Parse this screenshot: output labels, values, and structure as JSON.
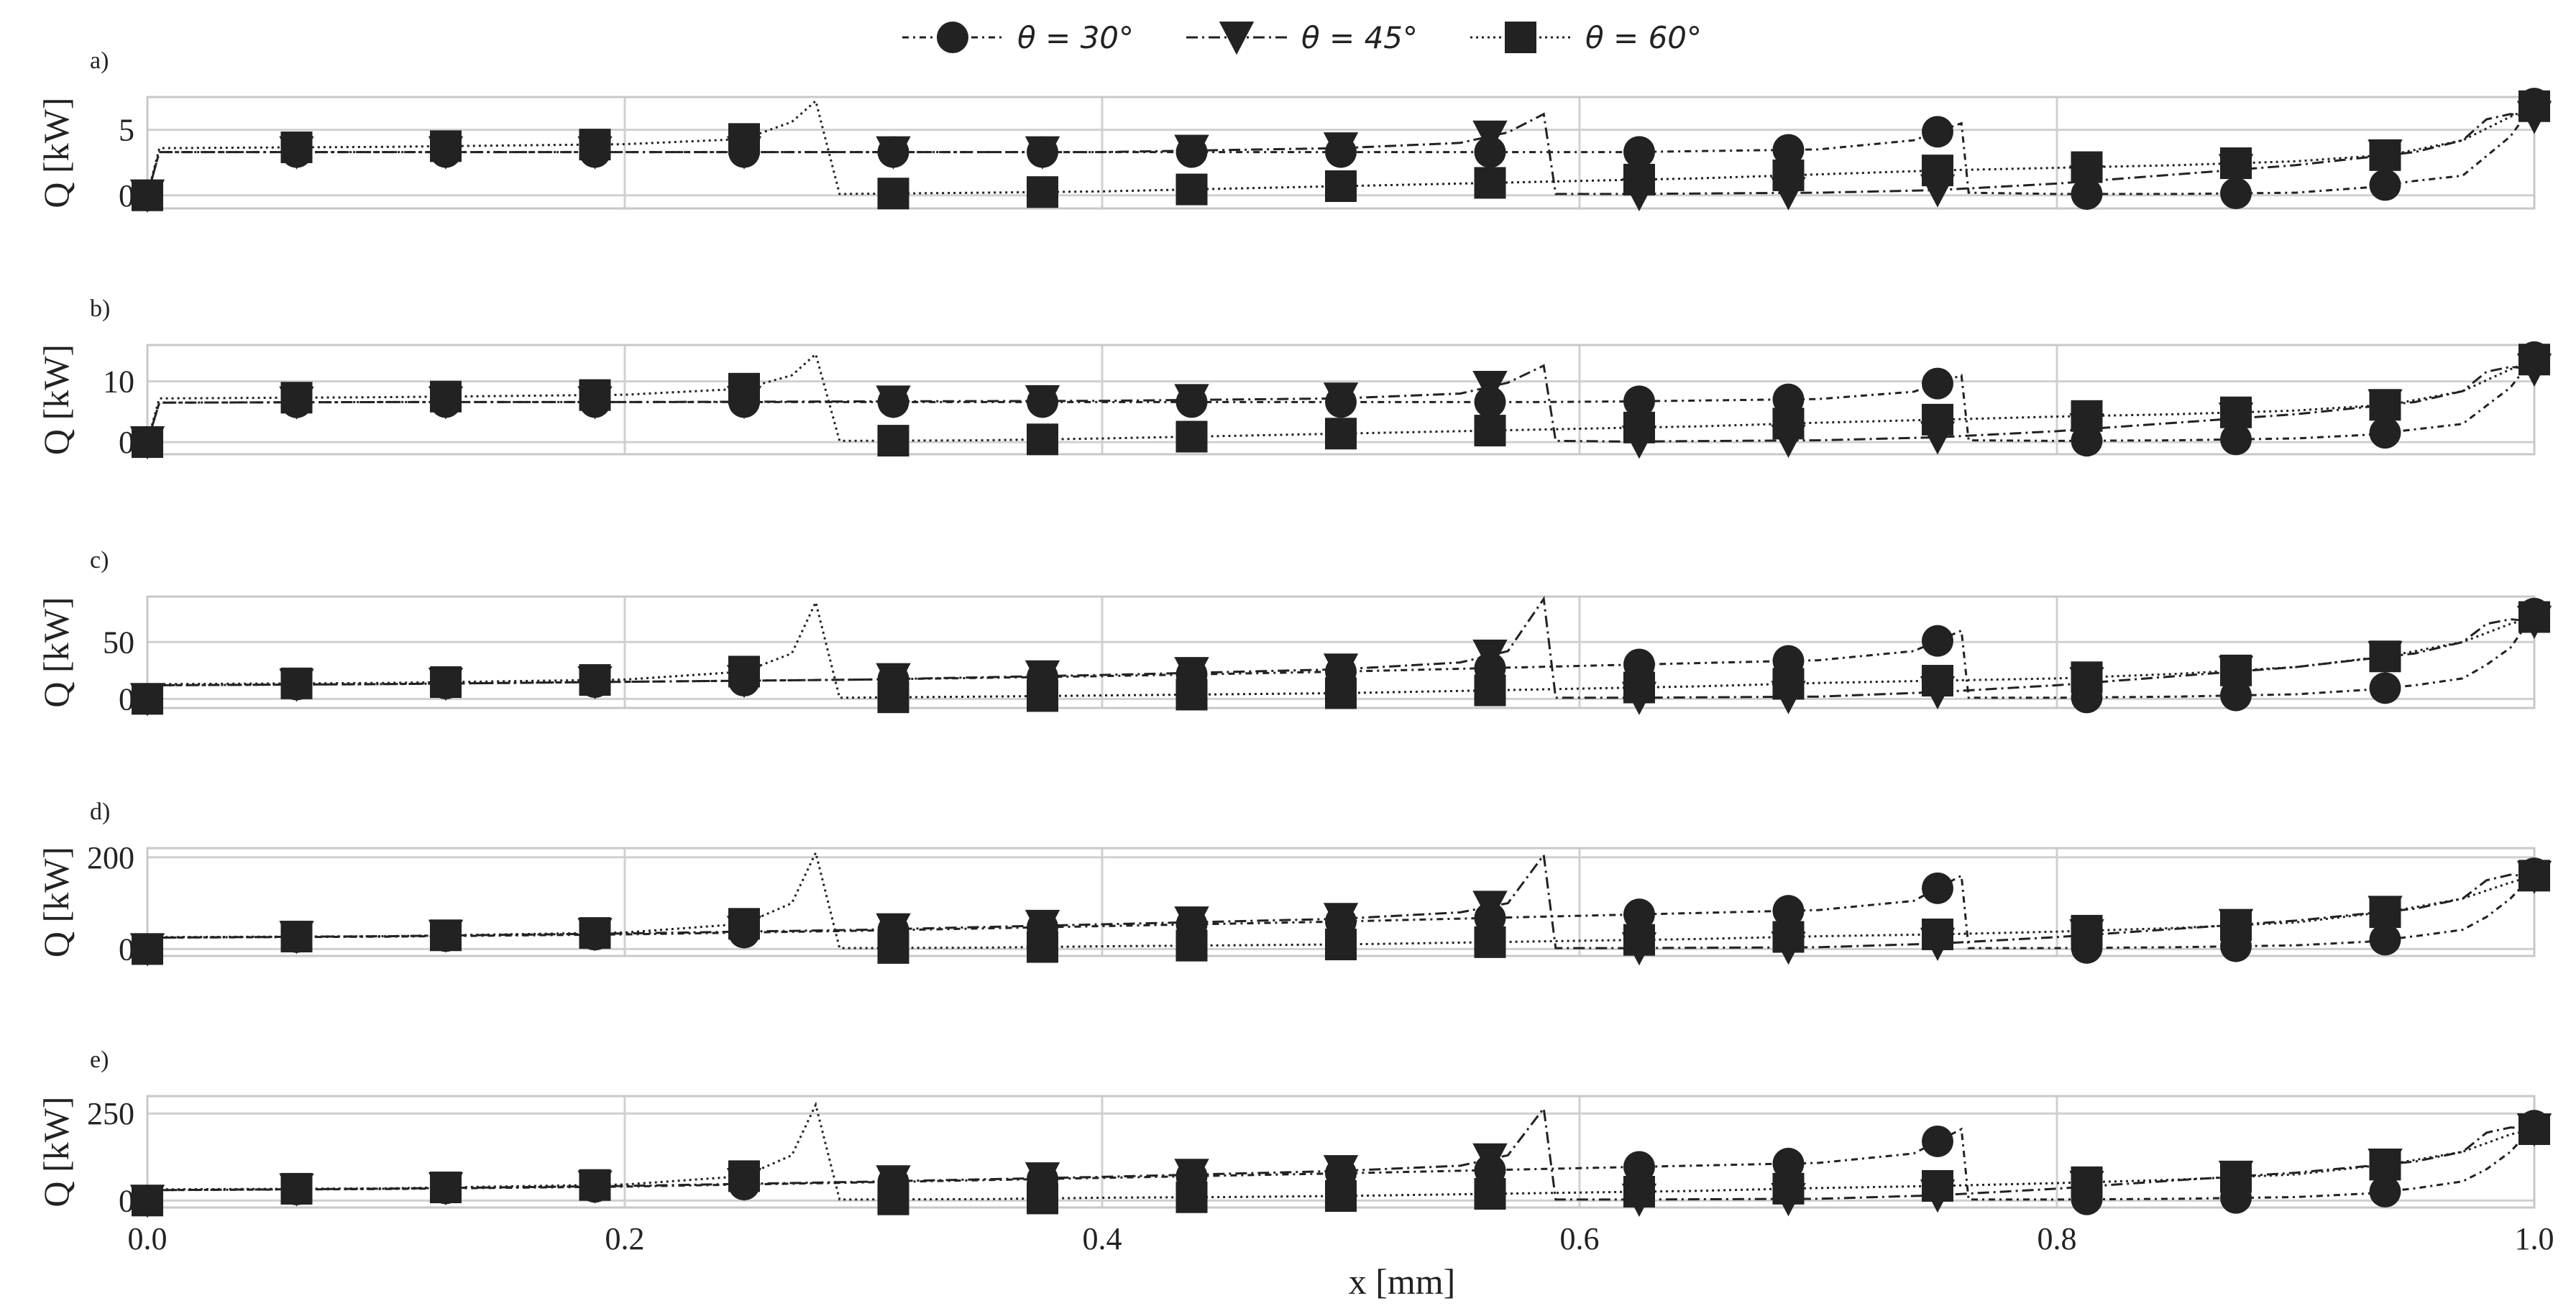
{
  "legend": [
    {
      "label": "θ = 30°",
      "marker": "circle",
      "dash": "9 6 3 6"
    },
    {
      "label": "θ = 45°",
      "marker": "triangle-down",
      "dash": "16 6 3 6"
    },
    {
      "label": "θ = 60°",
      "marker": "square",
      "dash": "3 5"
    }
  ],
  "colors": {
    "line": "#222222",
    "grid": "#d0d0d0",
    "frame": "#c8c8c8"
  },
  "xlabel": "x [mm]",
  "chart_data": {
    "type": "line",
    "xlabel": "x [mm]",
    "xlim": [
      0.0,
      1.0
    ],
    "x_ticks": [
      "0.0",
      "0.2",
      "0.4",
      "0.6",
      "0.8",
      "1.0"
    ],
    "x_tick_values": [
      0.0,
      0.2,
      0.4,
      0.6,
      0.8,
      1.0
    ],
    "grid": true,
    "legend_position": "top-center",
    "panels": [
      {
        "label": "a)",
        "ylabel": "Q [kW]",
        "ylim": [
          -1,
          7.5
        ],
        "y_ticks": [
          "0",
          "5"
        ],
        "y_tick_values": [
          0,
          5
        ],
        "series": [
          {
            "name": "θ = 30°",
            "marker": "circle",
            "x": [
              0,
              0.005,
              0.06,
              0.12,
              0.2,
              0.3,
              0.4,
              0.5,
              0.58,
              0.62,
              0.7,
              0.74,
              0.76,
              0.763,
              0.8,
              0.85,
              0.9,
              0.93,
              0.95,
              0.97,
              0.98,
              0.99,
              1.0
            ],
            "y": [
              0,
              3.3,
              3.3,
              3.3,
              3.3,
              3.3,
              3.3,
              3.3,
              3.3,
              3.3,
              3.5,
              4.2,
              5.5,
              0.2,
              0.1,
              0.1,
              0.2,
              0.6,
              1.1,
              1.5,
              3.0,
              4.5,
              7.0
            ]
          },
          {
            "name": "θ = 45°",
            "marker": "triangle-down",
            "x": [
              0,
              0.005,
              0.1,
              0.2,
              0.3,
              0.4,
              0.5,
              0.55,
              0.57,
              0.585,
              0.59,
              0.62,
              0.7,
              0.75,
              0.8,
              0.85,
              0.9,
              0.95,
              0.97,
              0.98,
              0.99,
              1.0
            ],
            "y": [
              0,
              3.3,
              3.3,
              3.3,
              3.3,
              3.3,
              3.6,
              4.0,
              4.8,
              6.2,
              0.1,
              0.1,
              0.2,
              0.4,
              0.9,
              1.6,
              2.3,
              3.3,
              4.2,
              5.8,
              6.2,
              6.0
            ]
          },
          {
            "name": "θ = 60°",
            "marker": "square",
            "x": [
              0,
              0.005,
              0.1,
              0.2,
              0.25,
              0.27,
              0.28,
              0.29,
              0.35,
              0.4,
              0.45,
              0.5,
              0.55,
              0.6,
              0.65,
              0.7,
              0.75,
              0.8,
              0.85,
              0.9,
              0.94,
              0.97,
              0.99,
              1.0
            ],
            "y": [
              0,
              3.6,
              3.7,
              3.9,
              4.3,
              5.6,
              7.2,
              0.1,
              0.2,
              0.3,
              0.5,
              0.7,
              0.9,
              1.1,
              1.3,
              1.6,
              1.9,
              2.1,
              2.3,
              2.6,
              3.1,
              4.2,
              6.0,
              6.8
            ]
          }
        ]
      },
      {
        "label": "b)",
        "ylabel": "Q [kW]",
        "ylim": [
          -2,
          16
        ],
        "y_ticks": [
          "0",
          "10"
        ],
        "y_tick_values": [
          0,
          10
        ],
        "series": [
          {
            "name": "θ = 30°",
            "marker": "circle",
            "x": [
              0,
              0.005,
              0.1,
              0.2,
              0.3,
              0.4,
              0.5,
              0.58,
              0.62,
              0.7,
              0.74,
              0.76,
              0.763,
              0.8,
              0.85,
              0.9,
              0.93,
              0.95,
              0.97,
              0.98,
              0.99,
              1.0
            ],
            "y": [
              0,
              6.5,
              6.6,
              6.6,
              6.6,
              6.6,
              6.6,
              6.6,
              6.7,
              7.1,
              8.3,
              11.0,
              0.3,
              0.2,
              0.3,
              0.6,
              1.2,
              2.1,
              3.0,
              6.0,
              9.0,
              14.0
            ]
          },
          {
            "name": "θ = 45°",
            "marker": "triangle-down",
            "x": [
              0,
              0.005,
              0.1,
              0.2,
              0.3,
              0.4,
              0.5,
              0.55,
              0.57,
              0.585,
              0.59,
              0.62,
              0.7,
              0.75,
              0.8,
              0.85,
              0.9,
              0.95,
              0.97,
              0.98,
              0.99,
              1.0
            ],
            "y": [
              0,
              6.5,
              6.6,
              6.6,
              6.7,
              6.8,
              7.2,
              8.0,
              9.8,
              12.6,
              0.2,
              0.1,
              0.3,
              0.8,
              1.8,
              3.2,
              4.6,
              6.6,
              8.4,
              11.6,
              12.4,
              12.0
            ]
          },
          {
            "name": "θ = 60°",
            "marker": "square",
            "x": [
              0,
              0.005,
              0.1,
              0.2,
              0.25,
              0.27,
              0.28,
              0.29,
              0.35,
              0.4,
              0.45,
              0.5,
              0.55,
              0.6,
              0.65,
              0.7,
              0.75,
              0.8,
              0.85,
              0.9,
              0.94,
              0.97,
              0.99,
              1.0
            ],
            "y": [
              0,
              7.2,
              7.4,
              7.8,
              8.8,
              11.0,
              14.5,
              0.2,
              0.3,
              0.6,
              1.0,
              1.4,
              1.8,
              2.2,
              2.6,
              3.2,
              3.7,
              4.2,
              4.6,
              5.2,
              6.2,
              8.4,
              12.0,
              13.6
            ]
          }
        ]
      },
      {
        "label": "c)",
        "ylabel": "Q [kW]",
        "ylim": [
          -8,
          90
        ],
        "y_ticks": [
          "0",
          "50"
        ],
        "y_tick_values": [
          0,
          50
        ],
        "series": [
          {
            "name": "θ = 30°",
            "marker": "circle",
            "x": [
              0,
              0.005,
              0.1,
              0.2,
              0.3,
              0.4,
              0.5,
              0.58,
              0.62,
              0.7,
              0.74,
              0.76,
              0.763,
              0.8,
              0.85,
              0.9,
              0.93,
              0.95,
              0.97,
              0.98,
              0.99,
              1.0
            ],
            "y": [
              0,
              12,
              13,
              15,
              17,
              20,
              24,
              28,
              30,
              34,
              42,
              60,
              1,
              1,
              2,
              4,
              8,
              12,
              18,
              30,
              45,
              75
            ]
          },
          {
            "name": "θ = 45°",
            "marker": "triangle-down",
            "x": [
              0,
              0.005,
              0.1,
              0.2,
              0.3,
              0.4,
              0.5,
              0.55,
              0.57,
              0.585,
              0.59,
              0.62,
              0.7,
              0.75,
              0.8,
              0.85,
              0.9,
              0.95,
              0.97,
              0.98,
              0.99,
              1.0
            ],
            "y": [
              0,
              12,
              13,
              15,
              17,
              21,
              26,
              32,
              42,
              88,
              1,
              1,
              2,
              6,
              12,
              20,
              28,
              40,
              50,
              66,
              70,
              68
            ]
          },
          {
            "name": "θ = 60°",
            "marker": "square",
            "x": [
              0,
              0.005,
              0.1,
              0.2,
              0.25,
              0.27,
              0.28,
              0.29,
              0.35,
              0.4,
              0.45,
              0.5,
              0.55,
              0.6,
              0.65,
              0.7,
              0.75,
              0.8,
              0.85,
              0.9,
              0.94,
              0.97,
              0.99,
              1.0
            ],
            "y": [
              0,
              13,
              14,
              17,
              24,
              40,
              85,
              1,
              2,
              3,
              4,
              5,
              7,
              9,
              11,
              14,
              16,
              18,
              22,
              28,
              38,
              50,
              66,
              72
            ]
          }
        ]
      },
      {
        "label": "d)",
        "ylabel": "Q [kW]",
        "ylim": [
          -15,
          220
        ],
        "y_ticks": [
          "0",
          "200"
        ],
        "y_tick_values": [
          0,
          200
        ],
        "series": [
          {
            "name": "θ = 30°",
            "marker": "circle",
            "x": [
              0,
              0.005,
              0.1,
              0.2,
              0.3,
              0.4,
              0.5,
              0.58,
              0.62,
              0.7,
              0.74,
              0.76,
              0.763,
              0.8,
              0.85,
              0.9,
              0.93,
              0.95,
              0.97,
              0.98,
              0.99,
              1.0
            ],
            "y": [
              0,
              25,
              27,
              32,
              40,
              50,
              60,
              70,
              75,
              85,
              105,
              160,
              2,
              2,
              4,
              8,
              16,
              28,
              42,
              70,
              110,
              165
            ]
          },
          {
            "name": "θ = 45°",
            "marker": "triangle-down",
            "x": [
              0,
              0.005,
              0.1,
              0.2,
              0.3,
              0.4,
              0.5,
              0.55,
              0.57,
              0.585,
              0.59,
              0.62,
              0.7,
              0.75,
              0.8,
              0.85,
              0.9,
              0.95,
              0.97,
              0.98,
              0.99,
              1.0
            ],
            "y": [
              0,
              25,
              28,
              34,
              42,
              54,
              66,
              80,
              100,
              205,
              2,
              2,
              4,
              12,
              26,
              44,
              62,
              88,
              110,
              150,
              162,
              158
            ]
          },
          {
            "name": "θ = 60°",
            "marker": "square",
            "x": [
              0,
              0.005,
              0.1,
              0.2,
              0.25,
              0.27,
              0.28,
              0.29,
              0.35,
              0.4,
              0.45,
              0.5,
              0.55,
              0.6,
              0.65,
              0.7,
              0.75,
              0.8,
              0.85,
              0.9,
              0.94,
              0.97,
              0.99,
              1.0
            ],
            "y": [
              0,
              26,
              28,
              36,
              55,
              100,
              210,
              2,
              3,
              6,
              8,
              10,
              14,
              18,
              22,
              28,
              32,
              38,
              46,
              58,
              82,
              110,
              145,
              160
            ]
          }
        ]
      },
      {
        "label": "e)",
        "ylabel": "Q [kW]",
        "ylim": [
          -20,
          300
        ],
        "y_ticks": [
          "0",
          "250"
        ],
        "y_tick_values": [
          0,
          250
        ],
        "series": [
          {
            "name": "θ = 30°",
            "marker": "circle",
            "x": [
              0,
              0.005,
              0.1,
              0.2,
              0.3,
              0.4,
              0.5,
              0.58,
              0.62,
              0.7,
              0.74,
              0.76,
              0.763,
              0.8,
              0.85,
              0.9,
              0.93,
              0.95,
              0.97,
              0.98,
              0.99,
              1.0
            ],
            "y": [
              0,
              30,
              33,
              40,
              52,
              65,
              78,
              90,
              96,
              108,
              135,
              205,
              3,
              3,
              5,
              10,
              20,
              35,
              55,
              90,
              140,
              215
            ]
          },
          {
            "name": "θ = 45°",
            "marker": "triangle-down",
            "x": [
              0,
              0.005,
              0.1,
              0.2,
              0.3,
              0.4,
              0.5,
              0.55,
              0.57,
              0.585,
              0.59,
              0.62,
              0.7,
              0.75,
              0.8,
              0.85,
              0.9,
              0.95,
              0.97,
              0.98,
              0.99,
              1.0
            ],
            "y": [
              0,
              30,
              34,
              42,
              54,
              68,
              85,
              100,
              130,
              265,
              3,
              3,
              5,
              15,
              34,
              58,
              80,
              112,
              140,
              195,
              210,
              205
            ]
          },
          {
            "name": "θ = 60°",
            "marker": "square",
            "x": [
              0,
              0.005,
              0.1,
              0.2,
              0.25,
              0.27,
              0.28,
              0.29,
              0.35,
              0.4,
              0.45,
              0.5,
              0.55,
              0.6,
              0.65,
              0.7,
              0.75,
              0.8,
              0.85,
              0.9,
              0.94,
              0.97,
              0.99,
              1.0
            ],
            "y": [
              0,
              32,
              35,
              46,
              70,
              130,
              275,
              3,
              4,
              8,
              10,
              13,
              18,
              23,
              28,
              36,
              42,
              50,
              60,
              75,
              105,
              140,
              190,
              205
            ]
          }
        ]
      }
    ]
  }
}
